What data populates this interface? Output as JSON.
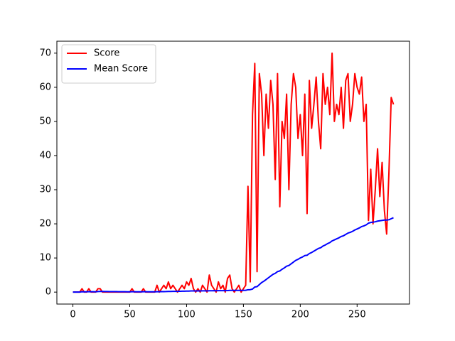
{
  "chart_data": {
    "type": "line",
    "x": [
      0,
      2,
      4,
      6,
      8,
      10,
      12,
      14,
      16,
      18,
      20,
      22,
      24,
      26,
      28,
      30,
      32,
      34,
      36,
      38,
      40,
      42,
      44,
      46,
      48,
      50,
      52,
      54,
      56,
      58,
      60,
      62,
      64,
      66,
      68,
      70,
      72,
      74,
      76,
      78,
      80,
      82,
      84,
      86,
      88,
      90,
      92,
      94,
      96,
      98,
      100,
      102,
      104,
      106,
      108,
      110,
      112,
      114,
      116,
      118,
      120,
      122,
      124,
      126,
      128,
      130,
      132,
      134,
      136,
      138,
      140,
      142,
      144,
      146,
      148,
      150,
      152,
      154,
      156,
      158,
      160,
      162,
      164,
      166,
      168,
      170,
      172,
      174,
      176,
      178,
      180,
      182,
      184,
      186,
      188,
      190,
      192,
      194,
      196,
      198,
      200,
      202,
      204,
      206,
      208,
      210,
      212,
      214,
      216,
      218,
      220,
      222,
      224,
      226,
      228,
      230,
      232,
      234,
      236,
      238,
      240,
      242,
      244,
      246,
      248,
      250,
      252,
      254,
      256,
      258,
      260,
      262,
      264,
      266,
      268,
      270,
      272,
      274,
      276,
      278,
      280,
      282
    ],
    "series": [
      {
        "name": "Score",
        "color": "#ff0000",
        "values": [
          0,
          0,
          0,
          0,
          1,
          0,
          0,
          1,
          0,
          0,
          0,
          1,
          1,
          0,
          0,
          0,
          0,
          0,
          0,
          0,
          0,
          0,
          0,
          0,
          0,
          0,
          1,
          0,
          0,
          0,
          0,
          1,
          0,
          0,
          0,
          0,
          0,
          2,
          0,
          1,
          2,
          1,
          3,
          1,
          2,
          1,
          0,
          1,
          2,
          1,
          3,
          2,
          4,
          1,
          0,
          1,
          0,
          2,
          1,
          0,
          5,
          2,
          1,
          0,
          3,
          1,
          2,
          0,
          4,
          5,
          1,
          0,
          1,
          2,
          0,
          1,
          2,
          31,
          3,
          52,
          67,
          6,
          64,
          58,
          40,
          58,
          48,
          62,
          55,
          33,
          64,
          25,
          50,
          45,
          58,
          30,
          55,
          64,
          60,
          45,
          52,
          40,
          58,
          23,
          62,
          48,
          55,
          63,
          50,
          42,
          64,
          55,
          60,
          52,
          70,
          50,
          55,
          52,
          60,
          48,
          62,
          64,
          50,
          55,
          64,
          60,
          58,
          63,
          50,
          55,
          21,
          36,
          20,
          30,
          42,
          28,
          38,
          24,
          17,
          35,
          57,
          55
        ]
      },
      {
        "name": "Mean Score",
        "color": "#0000ff",
        "values": [
          0,
          0,
          0,
          0,
          0.11,
          0.09,
          0.08,
          0.13,
          0.12,
          0.11,
          0.1,
          0.17,
          0.2,
          0.19,
          0.17,
          0.16,
          0.15,
          0.14,
          0.14,
          0.13,
          0.12,
          0.12,
          0.11,
          0.11,
          0.1,
          0.1,
          0.11,
          0.11,
          0.1,
          0.1,
          0.1,
          0.11,
          0.11,
          0.1,
          0.1,
          0.1,
          0.1,
          0.12,
          0.12,
          0.13,
          0.15,
          0.16,
          0.19,
          0.2,
          0.22,
          0.23,
          0.23,
          0.24,
          0.26,
          0.27,
          0.3,
          0.31,
          0.35,
          0.36,
          0.35,
          0.36,
          0.35,
          0.37,
          0.37,
          0.36,
          0.4,
          0.41,
          0.42,
          0.41,
          0.43,
          0.43,
          0.44,
          0.44,
          0.46,
          0.5,
          0.5,
          0.5,
          0.5,
          0.51,
          0.51,
          0.5,
          0.52,
          0.7,
          0.72,
          0.9,
          1.5,
          1.6,
          2.2,
          2.8,
          3.2,
          3.7,
          4.2,
          4.7,
          5.2,
          5.5,
          6.0,
          6.2,
          6.7,
          7.1,
          7.6,
          7.8,
          8.3,
          8.8,
          9.3,
          9.6,
          10.0,
          10.3,
          10.7,
          10.8,
          11.3,
          11.6,
          12.0,
          12.4,
          12.8,
          13.0,
          13.5,
          13.8,
          14.2,
          14.5,
          15.0,
          15.3,
          15.6,
          15.9,
          16.3,
          16.5,
          16.9,
          17.3,
          17.5,
          17.8,
          18.2,
          18.5,
          18.8,
          19.2,
          19.4,
          19.7,
          20.2,
          20.4,
          20.5,
          20.6,
          20.8,
          20.9,
          21.0,
          21.1,
          21.1,
          21.2,
          21.5,
          21.8
        ]
      }
    ],
    "xlim": [
      -14.1,
      296.1
    ],
    "xticks": [
      0,
      50,
      100,
      150,
      200,
      250
    ],
    "ylim": [
      -3.5,
      73.5
    ],
    "yticks": [
      0,
      10,
      20,
      30,
      40,
      50,
      60,
      70
    ],
    "grid": false,
    "legend": "upper-left"
  }
}
